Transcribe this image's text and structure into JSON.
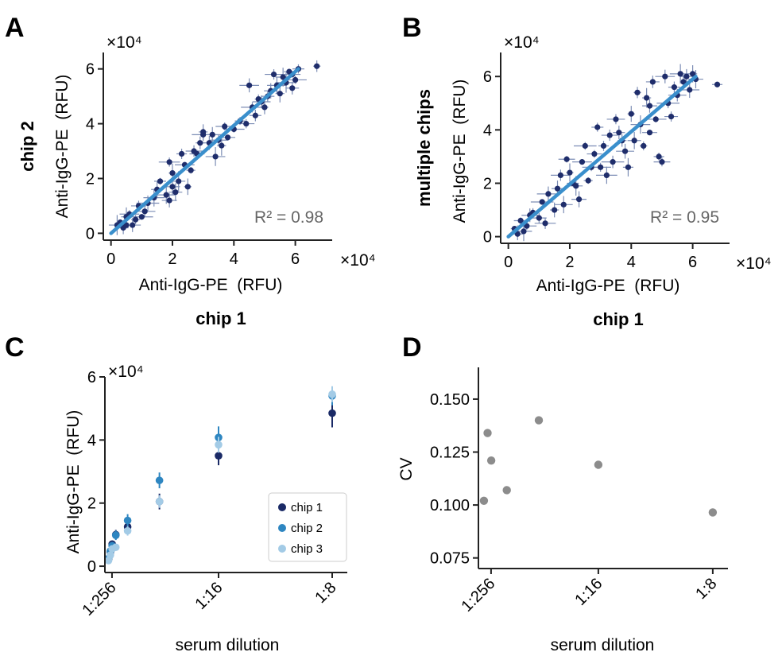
{
  "panels": {
    "A": {
      "letter": "A"
    },
    "B": {
      "letter": "B"
    },
    "C": {
      "letter": "C"
    },
    "D": {
      "letter": "D"
    }
  },
  "colors": {
    "scatter_points": "#1f2d6b",
    "error_bars": "#7c8db5",
    "fit_line": "#3a8fcc",
    "r2_text": "#666666",
    "chip1": "#1a2a66",
    "chip2": "#2e86c1",
    "chip3": "#a3cbe6",
    "cv_points": "#8c8c8c",
    "axis": "#222222"
  },
  "chart_data": [
    {
      "panel": "A",
      "type": "scatter",
      "xlabel": "Anti-IgG-PE  (RFU)",
      "ylabel": "Anti-IgG-PE  (RFU)",
      "row_label": "chip 2",
      "column_label": "chip 1",
      "x_exponent": "×10⁴",
      "y_exponent": "×10⁴",
      "xlim": [
        -0.25,
        7.2
      ],
      "ylim": [
        -0.25,
        6.6
      ],
      "xticks": [
        0,
        2,
        4,
        6
      ],
      "yticks": [
        0,
        2,
        4,
        6
      ],
      "xtick_labels": [
        "0",
        "2",
        "4",
        "6"
      ],
      "ytick_labels": [
        "0",
        "2",
        "4",
        "6"
      ],
      "annotation": "R² = 0.98",
      "r2": 0.98,
      "fit": [
        [
          0,
          0
        ],
        [
          6.1,
          6.0
        ]
      ],
      "points": [
        [
          0.3,
          0.4
        ],
        [
          0.5,
          0.3
        ],
        [
          0.6,
          0.7
        ],
        [
          0.8,
          0.5
        ],
        [
          0.9,
          1.0
        ],
        [
          1.1,
          0.8
        ],
        [
          0.4,
          0.2
        ],
        [
          0.7,
          0.3
        ],
        [
          1.2,
          1.1
        ],
        [
          1.5,
          1.6
        ],
        [
          1.8,
          1.4
        ],
        [
          2.0,
          2.2
        ],
        [
          2.2,
          1.9
        ],
        [
          2.4,
          2.5
        ],
        [
          2.6,
          2.3
        ],
        [
          2.8,
          2.9
        ],
        [
          1.9,
          2.6
        ],
        [
          2.3,
          2.9
        ],
        [
          2.7,
          3.0
        ],
        [
          3.0,
          3.6
        ],
        [
          3.2,
          3.3
        ],
        [
          3.3,
          3.6
        ],
        [
          2.5,
          1.7
        ],
        [
          2.1,
          1.5
        ],
        [
          3.4,
          2.8
        ],
        [
          3.6,
          3.2
        ],
        [
          3.8,
          3.5
        ],
        [
          4.0,
          3.8
        ],
        [
          4.2,
          4.1
        ],
        [
          4.4,
          4.0
        ],
        [
          4.6,
          4.6
        ],
        [
          4.7,
          4.3
        ],
        [
          4.9,
          4.8
        ],
        [
          5.0,
          4.6
        ],
        [
          5.2,
          5.2
        ],
        [
          5.4,
          5.4
        ],
        [
          5.5,
          5.1
        ],
        [
          5.6,
          5.7
        ],
        [
          5.7,
          5.5
        ],
        [
          5.8,
          5.9
        ],
        [
          5.9,
          5.8
        ],
        [
          6.0,
          5.6
        ],
        [
          6.1,
          6.0
        ],
        [
          5.3,
          5.8
        ],
        [
          6.7,
          6.1
        ],
        [
          5.9,
          5.3
        ],
        [
          4.5,
          5.4
        ],
        [
          3.0,
          3.7
        ],
        [
          2.0,
          1.7
        ],
        [
          1.4,
          1.3
        ],
        [
          0.5,
          0.6
        ],
        [
          0.2,
          0.3
        ],
        [
          1.0,
          0.6
        ],
        [
          1.6,
          1.9
        ],
        [
          3.7,
          3.9
        ],
        [
          4.8,
          4.9
        ],
        [
          5.1,
          5.0
        ],
        [
          3.5,
          3.4
        ],
        [
          2.9,
          3.3
        ],
        [
          1.9,
          1.2
        ]
      ]
    },
    {
      "panel": "B",
      "type": "scatter",
      "xlabel": "Anti-IgG-PE  (RFU)",
      "ylabel": "Anti-IgG-PE  (RFU)",
      "row_label": "multiple chips",
      "column_label": "chip 1",
      "x_exponent": "×10⁴",
      "y_exponent": "×10⁴",
      "xlim": [
        -0.25,
        7.2
      ],
      "ylim": [
        -0.25,
        6.9
      ],
      "xticks": [
        0,
        2,
        4,
        6
      ],
      "yticks": [
        0,
        2,
        4,
        6
      ],
      "xtick_labels": [
        "0",
        "2",
        "4",
        "6"
      ],
      "ytick_labels": [
        "0",
        "2",
        "4",
        "6"
      ],
      "annotation": "R² = 0.95",
      "r2": 0.95,
      "fit": [
        [
          0,
          0
        ],
        [
          6.1,
          6.0
        ]
      ],
      "points": [
        [
          0.2,
          0.3
        ],
        [
          0.4,
          0.6
        ],
        [
          0.6,
          0.4
        ],
        [
          0.8,
          0.9
        ],
        [
          1.0,
          0.7
        ],
        [
          1.2,
          0.5
        ],
        [
          0.3,
          0.1
        ],
        [
          0.7,
          0.8
        ],
        [
          1.3,
          1.6
        ],
        [
          1.6,
          1.8
        ],
        [
          1.8,
          1.2
        ],
        [
          2.0,
          2.4
        ],
        [
          2.2,
          1.9
        ],
        [
          2.4,
          2.8
        ],
        [
          2.6,
          2.1
        ],
        [
          2.8,
          3.1
        ],
        [
          3.0,
          2.6
        ],
        [
          3.1,
          3.4
        ],
        [
          3.3,
          3.8
        ],
        [
          3.4,
          2.8
        ],
        [
          3.6,
          3.9
        ],
        [
          3.8,
          3.2
        ],
        [
          4.0,
          4.6
        ],
        [
          4.1,
          3.6
        ],
        [
          4.3,
          4.2
        ],
        [
          4.5,
          5.2
        ],
        [
          4.6,
          3.9
        ],
        [
          4.8,
          4.4
        ],
        [
          4.9,
          3.0
        ],
        [
          5.0,
          2.8
        ],
        [
          5.2,
          5.0
        ],
        [
          5.4,
          5.6
        ],
        [
          5.5,
          5.3
        ],
        [
          5.7,
          5.8
        ],
        [
          5.8,
          6.0
        ],
        [
          5.9,
          5.5
        ],
        [
          6.0,
          6.1
        ],
        [
          6.1,
          5.9
        ],
        [
          5.6,
          6.1
        ],
        [
          6.8,
          5.7
        ],
        [
          1.9,
          2.9
        ],
        [
          2.5,
          3.4
        ],
        [
          2.9,
          4.1
        ],
        [
          3.5,
          4.4
        ],
        [
          4.2,
          5.4
        ],
        [
          4.7,
          5.8
        ],
        [
          5.1,
          6.0
        ],
        [
          1.5,
          1.0
        ],
        [
          2.3,
          1.4
        ],
        [
          3.2,
          2.3
        ],
        [
          3.9,
          2.6
        ],
        [
          0.5,
          0.2
        ],
        [
          1.1,
          1.3
        ],
        [
          2.1,
          2.0
        ],
        [
          2.7,
          2.6
        ],
        [
          4.4,
          3.4
        ],
        [
          5.3,
          4.5
        ],
        [
          1.7,
          2.3
        ],
        [
          3.7,
          3.6
        ],
        [
          4.6,
          4.9
        ]
      ]
    },
    {
      "panel": "C",
      "type": "scatter",
      "xlabel": "serum dilution",
      "ylabel": "Anti-IgG-PE  (RFU)",
      "y_exponent": "×10⁴",
      "ylim": [
        -0.2,
        6.0
      ],
      "yticks": [
        0,
        2,
        4,
        6
      ],
      "ytick_labels": [
        "0",
        "2",
        "4",
        "6"
      ],
      "xlim": [
        0.0,
        0.1333
      ],
      "xtick_values": [
        0.00390625,
        0.0625,
        0.125
      ],
      "xtick_labels": [
        "1:256",
        "1:16",
        "1:8"
      ],
      "legend": "bottom-right",
      "x": [
        0.002,
        0.003,
        0.004,
        0.006,
        0.0125,
        0.03,
        0.0625,
        0.125
      ],
      "series": [
        {
          "name": "chip 1",
          "values": [
            0.22,
            0.45,
            0.7,
            1.0,
            1.25,
            2.05,
            3.5,
            4.85
          ],
          "err": [
            0.1,
            0.1,
            0.1,
            0.15,
            0.15,
            0.25,
            0.3,
            0.45
          ]
        },
        {
          "name": "chip 2",
          "values": [
            0.25,
            0.48,
            0.65,
            0.98,
            1.45,
            2.72,
            4.08,
            5.4
          ],
          "err": [
            0.1,
            0.1,
            0.12,
            0.15,
            0.2,
            0.25,
            0.35,
            0.3
          ]
        },
        {
          "name": "chip 3",
          "values": [
            0.18,
            0.35,
            0.55,
            0.6,
            1.12,
            2.05,
            3.85,
            5.45
          ],
          "err": [
            0.08,
            0.1,
            0.1,
            0.1,
            0.15,
            0.2,
            0.25,
            0.25
          ]
        }
      ]
    },
    {
      "panel": "D",
      "type": "scatter",
      "xlabel": "serum dilution",
      "ylabel": "CV",
      "ylim": [
        0.07,
        0.165
      ],
      "yticks": [
        0.075,
        0.1,
        0.125,
        0.15
      ],
      "ytick_labels": [
        "0.075",
        "0.100",
        "0.125",
        "0.150"
      ],
      "xlim": [
        -0.003,
        0.1333
      ],
      "xtick_values": [
        0.00390625,
        0.0625,
        0.125
      ],
      "xtick_labels": [
        "1:256",
        "1:16",
        "1:8"
      ],
      "x": [
        0.0,
        0.002,
        0.004,
        0.0125,
        0.03,
        0.0625,
        0.125
      ],
      "values": [
        0.102,
        0.134,
        0.121,
        0.107,
        0.14,
        0.119,
        0.0965
      ]
    }
  ]
}
